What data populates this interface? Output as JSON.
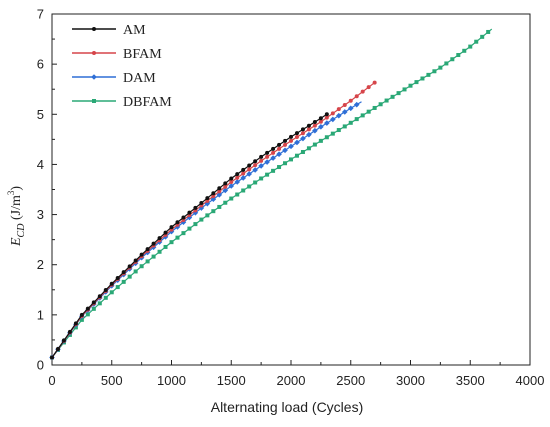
{
  "chart_data": {
    "type": "line",
    "title": "",
    "xlabel": "Alternating load (Cycles)",
    "ylabel": {
      "main": "E",
      "sub": "CD",
      "unit_prefix": " (J/m",
      "unit_sup": "3",
      "unit_suffix": ")"
    },
    "xlim": [
      0,
      4000
    ],
    "ylim": [
      0,
      7
    ],
    "xticks": [
      0,
      500,
      1000,
      1500,
      2000,
      2500,
      3000,
      3500,
      4000
    ],
    "yticks": [
      0,
      1,
      2,
      3,
      4,
      5,
      6,
      7
    ],
    "grid": false,
    "legend_position": "top-left",
    "series": [
      {
        "name": "AM",
        "color": "#111111",
        "marker": "circle",
        "x": [
          0,
          250,
          500,
          750,
          1000,
          1250,
          1500,
          1750,
          2000,
          2250,
          2300
        ],
        "y": [
          0.15,
          1.0,
          1.62,
          2.2,
          2.75,
          3.23,
          3.72,
          4.15,
          4.55,
          4.92,
          5.0
        ]
      },
      {
        "name": "BFAM",
        "color": "#d6454a",
        "marker": "circle",
        "x": [
          0,
          250,
          500,
          750,
          1000,
          1250,
          1500,
          1750,
          2000,
          2250,
          2500,
          2710
        ],
        "y": [
          0.15,
          0.98,
          1.6,
          2.17,
          2.7,
          3.18,
          3.65,
          4.07,
          4.47,
          4.85,
          5.27,
          5.65
        ]
      },
      {
        "name": "DAM",
        "color": "#2f6fd6",
        "marker": "diamond",
        "x": [
          0,
          250,
          500,
          750,
          1000,
          1250,
          1500,
          1750,
          2000,
          2250,
          2500,
          2590
        ],
        "y": [
          0.15,
          0.97,
          1.58,
          2.14,
          2.66,
          3.13,
          3.57,
          3.97,
          4.36,
          4.75,
          5.12,
          5.25
        ]
      },
      {
        "name": "DBFAM",
        "color": "#2aa876",
        "marker": "square",
        "x": [
          0,
          250,
          500,
          750,
          1000,
          1250,
          1500,
          1750,
          2000,
          2250,
          2500,
          2750,
          3000,
          3250,
          3500,
          3680
        ],
        "y": [
          0.15,
          0.9,
          1.45,
          1.97,
          2.45,
          2.9,
          3.32,
          3.72,
          4.1,
          4.47,
          4.83,
          5.2,
          5.57,
          5.93,
          6.35,
          6.7
        ]
      }
    ]
  }
}
